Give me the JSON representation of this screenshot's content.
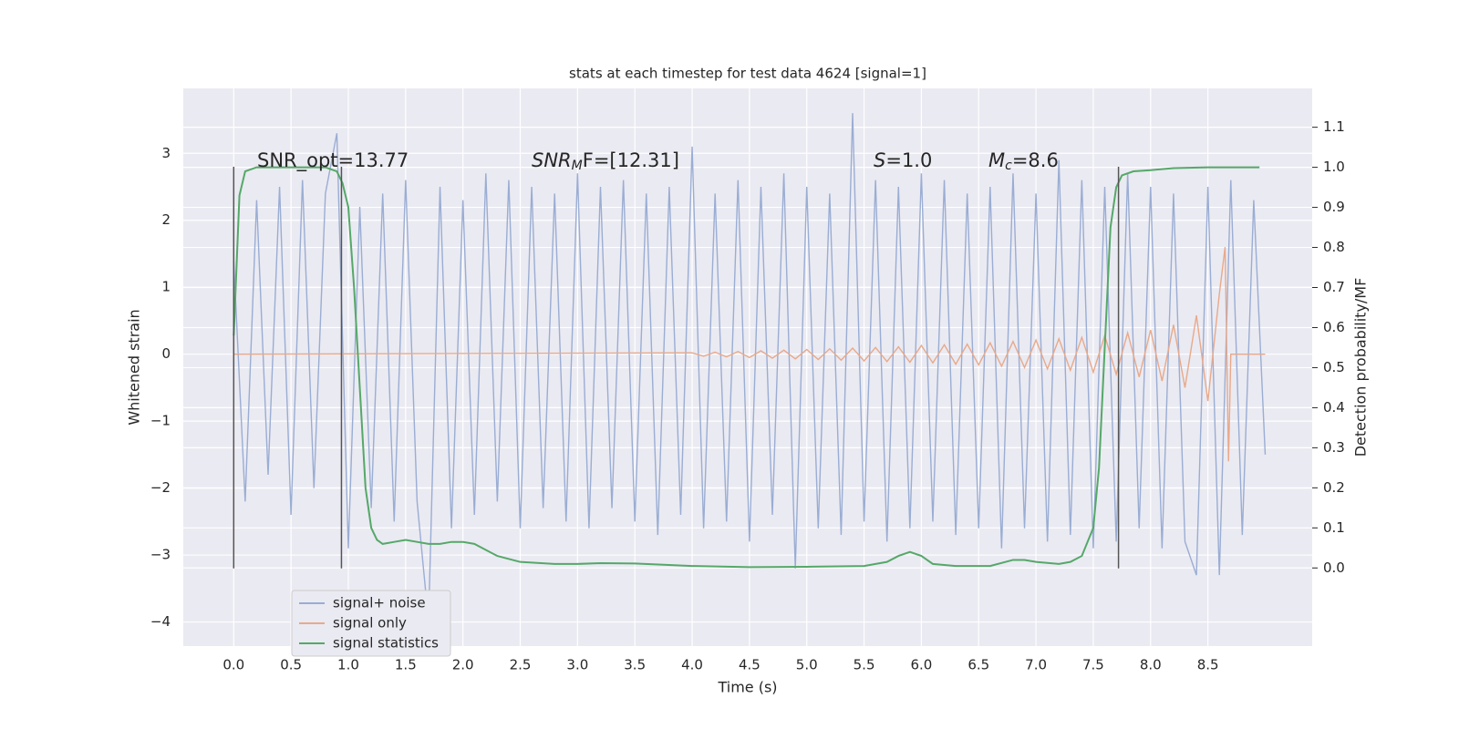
{
  "chart_data": {
    "type": "line",
    "title": "stats at each timestep for test data 4624 [signal=1]",
    "x_label": "Time (s)",
    "y_label": "Whitened strain",
    "y2_label": "Detection probability/MF",
    "xlim": [
      -0.44,
      9.41
    ],
    "ylim": [
      -4.36,
      3.97
    ],
    "y2lim": [
      -0.195,
      1.197
    ],
    "xticks": [
      {
        "value": 0,
        "label": "0.0"
      },
      0.5,
      {
        "value": 1,
        "label": "1.0"
      },
      1.5,
      {
        "value": 2,
        "label": "2.0"
      },
      2.5,
      {
        "value": 3,
        "label": "3.0"
      },
      3.5,
      {
        "value": 4,
        "label": "4.0"
      },
      4.5,
      {
        "value": 5,
        "label": "5.0"
      },
      5.5,
      {
        "value": 6,
        "label": "6.0"
      },
      6.5,
      {
        "value": 7,
        "label": "7.0"
      },
      7.5,
      {
        "value": 8,
        "label": "8.0"
      },
      8.5
    ],
    "yticks": [
      {
        "value": -4,
        "label": "−4"
      },
      {
        "value": -3,
        "label": "−3"
      },
      {
        "value": -2,
        "label": "−2"
      },
      {
        "value": -1,
        "label": "−1"
      },
      0,
      1,
      2,
      3
    ],
    "y2ticks": [
      {
        "value": 0,
        "label": "0.0"
      },
      0.1,
      0.2,
      0.3,
      0.4,
      0.5,
      0.6,
      0.7,
      0.8,
      0.9,
      {
        "value": 1,
        "label": "1.0"
      },
      1.1
    ],
    "grid": true,
    "legend": "lower left",
    "annotations": [
      {
        "base": "SNR_opt=13.77"
      },
      {
        "base": "SNR",
        "sub": "M",
        "tail": "F=[12.31]"
      },
      {
        "base": "S",
        "tail": "=1.0"
      },
      {
        "base": "M",
        "sub": "c",
        "tail": "=8.6"
      }
    ],
    "vlines": {
      "x": [
        0,
        0.94,
        7.72
      ],
      "ymin": -3.2,
      "ymax": 2.8,
      "color": "#555555"
    },
    "series": [
      {
        "name": "signal+ noise",
        "color": "#9aadd3",
        "x": [
          0,
          0.1,
          0.2,
          0.3,
          0.4,
          0.5,
          0.6,
          0.7,
          0.8,
          0.9,
          1,
          1.1,
          1.2,
          1.3,
          1.4,
          1.5,
          1.6,
          1.7,
          1.8,
          1.9,
          2,
          2.1,
          2.2,
          2.3,
          2.4,
          2.5,
          2.6,
          2.7,
          2.8,
          2.9,
          3,
          3.1,
          3.2,
          3.3,
          3.4,
          3.5,
          3.6,
          3.7,
          3.8,
          3.9,
          4,
          4.1,
          4.2,
          4.3,
          4.4,
          4.5,
          4.6,
          4.7,
          4.8,
          4.9,
          5,
          5.1,
          5.2,
          5.3,
          5.4,
          5.5,
          5.6,
          5.7,
          5.8,
          5.9,
          6,
          6.1,
          6.2,
          6.3,
          6.4,
          6.5,
          6.6,
          6.7,
          6.8,
          6.9,
          7,
          7.1,
          7.2,
          7.3,
          7.4,
          7.5,
          7.6,
          7.7,
          7.8,
          7.9,
          8,
          8.1,
          8.2,
          8.3,
          8.4,
          8.5,
          8.6,
          8.7,
          8.8,
          8.9,
          9
        ],
        "values": [
          1.4,
          -2.2,
          2.3,
          -1.8,
          2.5,
          -2.4,
          2.6,
          -2.0,
          2.4,
          3.3,
          -2.9,
          2.2,
          -2.3,
          2.4,
          -2.5,
          2.6,
          -2.2,
          -4.0,
          2.5,
          -2.6,
          2.3,
          -2.4,
          2.7,
          -2.2,
          2.6,
          -2.6,
          2.5,
          -2.3,
          2.4,
          -2.5,
          2.7,
          -2.6,
          2.5,
          -2.3,
          2.6,
          -2.5,
          2.4,
          -2.7,
          2.5,
          -2.4,
          3.1,
          -2.6,
          2.4,
          -2.5,
          2.6,
          -2.8,
          2.5,
          -2.4,
          2.7,
          -3.2,
          2.5,
          -2.6,
          2.4,
          -2.7,
          3.6,
          -2.5,
          2.6,
          -2.8,
          2.5,
          -2.6,
          2.7,
          -2.5,
          2.6,
          -2.7,
          2.4,
          -2.6,
          2.5,
          -2.9,
          2.7,
          -2.6,
          2.4,
          -2.8,
          2.9,
          -2.7,
          2.6,
          -2.9,
          2.5,
          -2.8,
          2.7,
          -2.6,
          2.5,
          -2.9,
          2.4,
          -2.8,
          -3.3,
          2.5,
          -3.3,
          2.6,
          -2.7,
          2.3,
          -1.5
        ]
      },
      {
        "name": "signal only",
        "color": "#e8a98a",
        "x": [
          0,
          4,
          4.1,
          4.2,
          4.3,
          4.4,
          4.5,
          4.6,
          4.7,
          4.8,
          4.9,
          5,
          5.1,
          5.2,
          5.3,
          5.4,
          5.5,
          5.6,
          5.7,
          5.8,
          5.9,
          6,
          6.1,
          6.2,
          6.3,
          6.4,
          6.5,
          6.6,
          6.7,
          6.8,
          6.9,
          7,
          7.1,
          7.2,
          7.3,
          7.4,
          7.5,
          7.6,
          7.7,
          7.8,
          7.9,
          8,
          8.1,
          8.2,
          8.3,
          8.4,
          8.5,
          8.6,
          8.65,
          8.68,
          8.7,
          9
        ],
        "values": [
          0,
          0.02,
          -0.03,
          0.03,
          -0.04,
          0.04,
          -0.05,
          0.05,
          -0.06,
          0.06,
          -0.07,
          0.07,
          -0.08,
          0.08,
          -0.09,
          0.09,
          -0.1,
          0.1,
          -0.11,
          0.11,
          -0.12,
          0.13,
          -0.13,
          0.14,
          -0.15,
          0.15,
          -0.16,
          0.17,
          -0.18,
          0.19,
          -0.2,
          0.21,
          -0.22,
          0.23,
          -0.24,
          0.25,
          -0.27,
          0.28,
          -0.3,
          0.32,
          -0.34,
          0.36,
          -0.4,
          0.44,
          -0.5,
          0.58,
          -0.7,
          0.9,
          1.6,
          -1.6,
          0,
          0
        ]
      },
      {
        "name": "signal statistics",
        "color": "#55a868",
        "axis": "y2",
        "x": [
          0,
          0.05,
          0.1,
          0.2,
          0.8,
          0.9,
          0.95,
          1,
          1.05,
          1.1,
          1.15,
          1.2,
          1.25,
          1.3,
          1.4,
          1.5,
          1.6,
          1.7,
          1.8,
          1.9,
          2,
          2.1,
          2.2,
          2.3,
          2.5,
          2.8,
          3,
          3.2,
          3.5,
          4,
          4.5,
          5,
          5.5,
          5.7,
          5.8,
          5.9,
          6,
          6.1,
          6.3,
          6.6,
          6.8,
          6.9,
          7,
          7.2,
          7.3,
          7.4,
          7.5,
          7.55,
          7.6,
          7.65,
          7.7,
          7.75,
          7.85,
          8,
          8.2,
          8.5,
          8.95
        ],
        "values": [
          0.58,
          0.93,
          0.99,
          1,
          1,
          0.99,
          0.96,
          0.9,
          0.7,
          0.45,
          0.2,
          0.1,
          0.07,
          0.06,
          0.065,
          0.07,
          0.065,
          0.06,
          0.06,
          0.065,
          0.065,
          0.06,
          0.045,
          0.03,
          0.015,
          0.01,
          0.01,
          0.012,
          0.011,
          0.005,
          0.002,
          0.003,
          0.005,
          0.015,
          0.03,
          0.04,
          0.03,
          0.01,
          0.005,
          0.005,
          0.02,
          0.02,
          0.015,
          0.01,
          0.015,
          0.03,
          0.1,
          0.25,
          0.55,
          0.85,
          0.95,
          0.98,
          0.99,
          0.993,
          0.998,
          1,
          1
        ]
      }
    ]
  }
}
